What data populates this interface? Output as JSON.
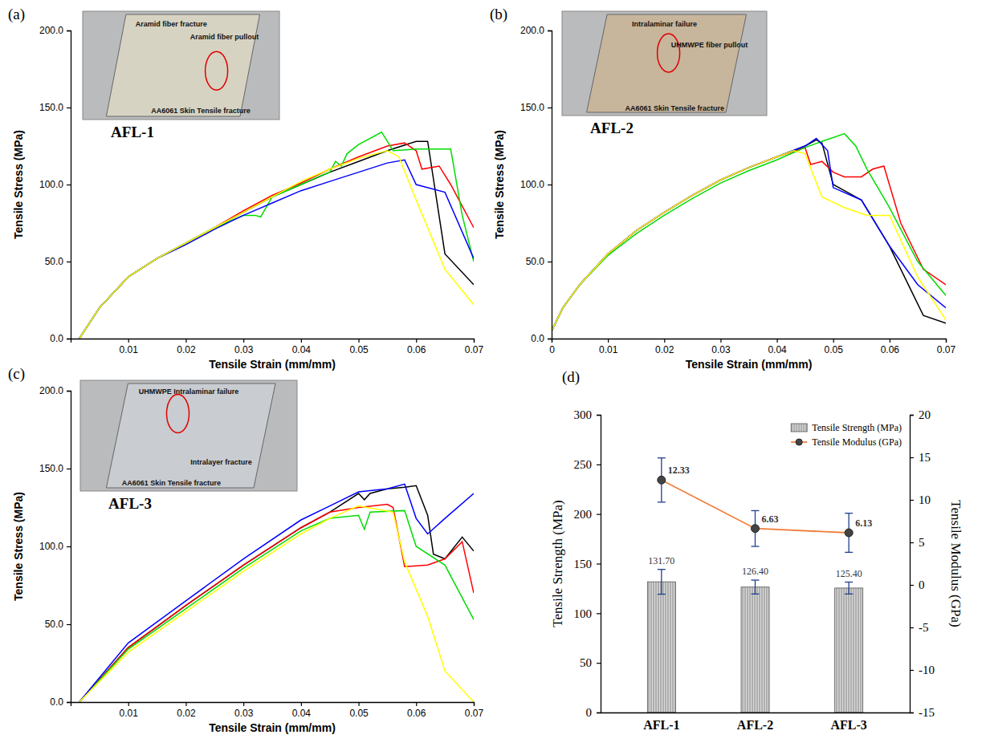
{
  "chart_data": [
    {
      "type": "line",
      "panel": "(a)",
      "title": "AFL-1",
      "xlabel": "Tensile Strain (mm/mm)",
      "ylabel": "Tensile Stress (MPa)",
      "annotations": [
        "Aramid fiber fracture",
        "Aramid fiber pullout",
        "AA6061 Skin Tensile fracture"
      ],
      "xlim": [
        0,
        0.07
      ],
      "xticks": [
        0.01,
        0.02,
        0.03,
        0.04,
        0.05,
        0.06,
        0.07
      ],
      "ylim": [
        0,
        200
      ],
      "yticks": [
        {
          "value": 0,
          "label": "0.0"
        },
        {
          "value": 50,
          "label": "50.0"
        },
        {
          "value": 100,
          "label": "100.0"
        },
        {
          "value": 150,
          "label": "150.0"
        },
        {
          "value": 200,
          "label": "200.0"
        }
      ],
      "series": [
        {
          "color": "#000000",
          "x": [
            0.0015,
            0.005,
            0.01,
            0.015,
            0.02,
            0.025,
            0.03,
            0.035,
            0.04,
            0.045,
            0.05,
            0.055,
            0.06,
            0.062,
            0.065,
            0.07
          ],
          "values": [
            0,
            20,
            40,
            52,
            62,
            72,
            82,
            92,
            100,
            108,
            115,
            122,
            128,
            128,
            55,
            35
          ]
        },
        {
          "color": "#ff0000",
          "x": [
            0.0015,
            0.005,
            0.01,
            0.015,
            0.02,
            0.025,
            0.03,
            0.035,
            0.04,
            0.045,
            0.05,
            0.055,
            0.058,
            0.06,
            0.061,
            0.064,
            0.066,
            0.07
          ],
          "values": [
            0,
            20,
            40,
            52,
            62,
            72,
            83,
            93,
            101,
            110,
            118,
            125,
            127,
            122,
            110,
            112,
            100,
            72
          ]
        },
        {
          "color": "#00dd00",
          "x": [
            0.0015,
            0.005,
            0.01,
            0.015,
            0.02,
            0.025,
            0.03,
            0.032,
            0.033,
            0.035,
            0.04,
            0.043,
            0.045,
            0.046,
            0.047,
            0.048,
            0.05,
            0.054,
            0.056,
            0.06,
            0.066,
            0.068,
            0.07
          ],
          "values": [
            0,
            20,
            40,
            52,
            62,
            72,
            80,
            80,
            79,
            92,
            100,
            105,
            108,
            115,
            112,
            120,
            126,
            134,
            122,
            123,
            123,
            80,
            50
          ]
        },
        {
          "color": "#0000ff",
          "x": [
            0.0015,
            0.005,
            0.01,
            0.015,
            0.02,
            0.025,
            0.03,
            0.035,
            0.04,
            0.045,
            0.05,
            0.055,
            0.058,
            0.06,
            0.065,
            0.07
          ],
          "values": [
            0,
            20,
            40,
            52,
            61,
            71,
            80,
            88,
            96,
            102,
            108,
            114,
            116,
            100,
            95,
            52
          ]
        },
        {
          "color": "#ffff00",
          "x": [
            0.0015,
            0.005,
            0.01,
            0.015,
            0.02,
            0.025,
            0.03,
            0.035,
            0.04,
            0.045,
            0.05,
            0.055,
            0.057,
            0.06,
            0.065,
            0.07
          ],
          "values": [
            0,
            20,
            40,
            52,
            62,
            72,
            82,
            92,
            102,
            110,
            117,
            122,
            118,
            90,
            45,
            22
          ]
        }
      ]
    },
    {
      "type": "line",
      "panel": "(b)",
      "title": "AFL-2",
      "xlabel": "Tensile Strain (mm/mm)",
      "ylabel": "Tensile Stress (MPa)",
      "annotations": [
        "Intralaminar failure",
        "UHMWPE fiber pullout",
        "AA6061 Skin Tensile fracture"
      ],
      "xlim": [
        0,
        0.07
      ],
      "xticks": [
        0,
        0.01,
        0.02,
        0.03,
        0.04,
        0.05,
        0.06,
        0.07
      ],
      "ylim": [
        0,
        200
      ],
      "yticks": [
        {
          "value": 0,
          "label": "0.0"
        },
        {
          "value": 50,
          "label": "50.0"
        },
        {
          "value": 100,
          "label": "100.0"
        },
        {
          "value": 150,
          "label": "150.0"
        },
        {
          "value": 200,
          "label": "200.0"
        }
      ],
      "series": [
        {
          "color": "#000000",
          "x": [
            0,
            0.002,
            0.005,
            0.01,
            0.015,
            0.02,
            0.025,
            0.03,
            0.035,
            0.04,
            0.045,
            0.047,
            0.048,
            0.05,
            0.055,
            0.06,
            0.066,
            0.07
          ],
          "values": [
            5,
            20,
            35,
            55,
            70,
            82,
            93,
            103,
            111,
            118,
            125,
            129,
            127,
            100,
            90,
            60,
            15,
            10
          ]
        },
        {
          "color": "#ff0000",
          "x": [
            0,
            0.002,
            0.005,
            0.01,
            0.015,
            0.02,
            0.025,
            0.03,
            0.035,
            0.04,
            0.045,
            0.046,
            0.048,
            0.05,
            0.052,
            0.055,
            0.057,
            0.059,
            0.062,
            0.066,
            0.07
          ],
          "values": [
            5,
            20,
            35,
            55,
            70,
            82,
            93,
            103,
            111,
            118,
            124,
            113,
            115,
            108,
            105,
            105,
            110,
            112,
            75,
            45,
            35
          ]
        },
        {
          "color": "#00dd00",
          "x": [
            0,
            0.002,
            0.005,
            0.01,
            0.015,
            0.02,
            0.025,
            0.03,
            0.035,
            0.04,
            0.045,
            0.048,
            0.052,
            0.054,
            0.056,
            0.06,
            0.065,
            0.07
          ],
          "values": [
            5,
            20,
            35,
            54,
            68,
            80,
            91,
            101,
            109,
            116,
            124,
            128,
            133,
            125,
            110,
            85,
            50,
            28
          ]
        },
        {
          "color": "#0000ff",
          "x": [
            0,
            0.002,
            0.005,
            0.01,
            0.015,
            0.02,
            0.025,
            0.03,
            0.035,
            0.04,
            0.045,
            0.047,
            0.049,
            0.05,
            0.055,
            0.06,
            0.065,
            0.07
          ],
          "values": [
            5,
            20,
            35,
            55,
            70,
            82,
            93,
            103,
            111,
            118,
            125,
            130,
            122,
            98,
            90,
            60,
            35,
            20
          ]
        },
        {
          "color": "#ffff00",
          "x": [
            0,
            0.002,
            0.005,
            0.01,
            0.015,
            0.02,
            0.025,
            0.03,
            0.035,
            0.04,
            0.043,
            0.045,
            0.048,
            0.052,
            0.056,
            0.06,
            0.065,
            0.07
          ],
          "values": [
            5,
            20,
            35,
            55,
            70,
            82,
            93,
            103,
            111,
            118,
            122,
            120,
            92,
            85,
            80,
            80,
            40,
            12
          ]
        }
      ]
    },
    {
      "type": "line",
      "panel": "(c)",
      "title": "AFL-3",
      "xlabel": "Tensile Strain (mm/mm)",
      "ylabel": "Tensile Stress (MPa)",
      "annotations": [
        "UHMWPE Intralaminar failure",
        "Intralayer fracture",
        "AA6061 Skin Tensile fracture"
      ],
      "xlim": [
        0,
        0.07
      ],
      "xticks": [
        0.01,
        0.02,
        0.03,
        0.04,
        0.05,
        0.06,
        0.07
      ],
      "ylim": [
        0,
        200
      ],
      "yticks": [
        {
          "value": 0,
          "label": "0.0"
        },
        {
          "value": 50,
          "label": "50.0"
        },
        {
          "value": 100,
          "label": "100.0"
        },
        {
          "value": 150,
          "label": "150.0"
        },
        {
          "value": 200,
          "label": "200.0"
        }
      ],
      "series": [
        {
          "color": "#000000",
          "x": [
            0.0015,
            0.01,
            0.02,
            0.03,
            0.04,
            0.045,
            0.05,
            0.051,
            0.052,
            0.055,
            0.058,
            0.06,
            0.062,
            0.063,
            0.065,
            0.068,
            0.07
          ],
          "values": [
            0,
            35,
            62,
            88,
            112,
            122,
            134,
            130,
            134,
            137,
            138,
            139,
            120,
            95,
            92,
            106,
            97
          ]
        },
        {
          "color": "#ff0000",
          "x": [
            0.0015,
            0.01,
            0.02,
            0.03,
            0.04,
            0.045,
            0.05,
            0.055,
            0.056,
            0.058,
            0.062,
            0.065,
            0.068,
            0.07
          ],
          "values": [
            0,
            35,
            62,
            88,
            112,
            122,
            125,
            127,
            125,
            87,
            88,
            92,
            103,
            70
          ]
        },
        {
          "color": "#00dd00",
          "x": [
            0.0015,
            0.01,
            0.02,
            0.03,
            0.04,
            0.045,
            0.05,
            0.051,
            0.052,
            0.058,
            0.06,
            0.065,
            0.07
          ],
          "values": [
            0,
            34,
            60,
            86,
            110,
            118,
            120,
            111,
            122,
            123,
            100,
            88,
            53
          ]
        },
        {
          "color": "#0000ff",
          "x": [
            0.0015,
            0.01,
            0.02,
            0.03,
            0.04,
            0.045,
            0.05,
            0.055,
            0.058,
            0.06,
            0.062,
            0.065,
            0.07
          ],
          "values": [
            0,
            38,
            65,
            92,
            117,
            126,
            135,
            137,
            140,
            118,
            108,
            118,
            134
          ]
        },
        {
          "color": "#ffff00",
          "x": [
            0.0015,
            0.01,
            0.02,
            0.03,
            0.04,
            0.045,
            0.05,
            0.056,
            0.058,
            0.062,
            0.065,
            0.07
          ],
          "values": [
            0,
            32,
            58,
            84,
            108,
            118,
            126,
            122,
            90,
            55,
            20,
            0
          ]
        }
      ]
    },
    {
      "type": "bar",
      "panel": "(d)",
      "ylabel": "Tensile Strength (MPa)",
      "y2label": "Tensile Modulus (GPa)",
      "categories": [
        "AFL-1",
        "AFL-2",
        "AFL-3"
      ],
      "ylim": [
        0,
        300
      ],
      "yticks": [
        0,
        50,
        100,
        150,
        200,
        250,
        300
      ],
      "y2lim": [
        -15,
        20
      ],
      "y2ticks": [
        -15,
        -10,
        -5,
        0,
        5,
        10,
        15,
        20
      ],
      "legend": "top-right",
      "data_labels": true,
      "series": [
        {
          "name": "Tensile Strength (MPa)",
          "type": "bar",
          "color": "#d9d9d9",
          "values": [
            131.7,
            126.4,
            125.4
          ],
          "value_labels": [
            "131.70",
            "126.40",
            "125.40"
          ],
          "errors": [
            12.5,
            7,
            6
          ]
        },
        {
          "name": "Tensile Modulus (GPa)",
          "type": "line",
          "axis": "y2",
          "color": "#f07f3c",
          "marker": "circle",
          "values": [
            12.33,
            6.63,
            6.13
          ],
          "value_labels": [
            "12.33",
            "6.63",
            "6.13"
          ],
          "errors": [
            2.6,
            2.1,
            2.3
          ]
        }
      ]
    }
  ]
}
